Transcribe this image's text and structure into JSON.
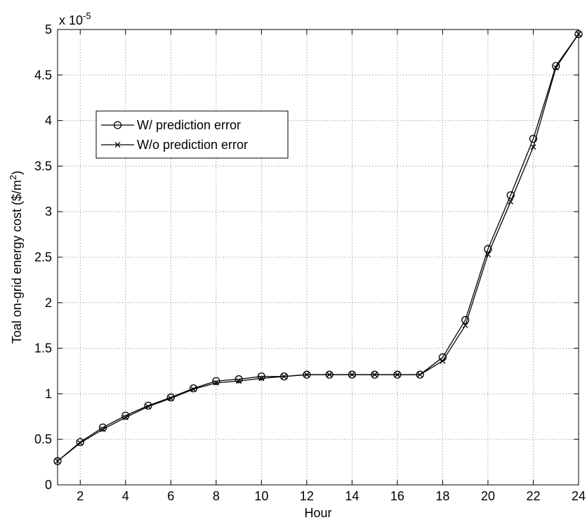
{
  "chart_data": {
    "type": "line",
    "title": "",
    "xlabel": "Hour",
    "ylabel": "Toal on-grid energy cost ($/m",
    "ylabel_superscript": "2",
    "ylabel_suffix": ")",
    "y_multiplier_label": "x 10",
    "y_multiplier_exponent": "-5",
    "xlim": [
      1,
      24
    ],
    "ylim": [
      0,
      5
    ],
    "xticks": [
      2,
      4,
      6,
      8,
      10,
      12,
      14,
      16,
      18,
      20,
      22,
      24
    ],
    "yticks": [
      0,
      0.5,
      1,
      1.5,
      2,
      2.5,
      3,
      3.5,
      4,
      4.5,
      5
    ],
    "ytick_labels": [
      "0",
      "0.5",
      "1",
      "1.5",
      "2",
      "2.5",
      "3",
      "3.5",
      "4",
      "4.5",
      "5"
    ],
    "grid": true,
    "legend_position": "upper-left",
    "x": [
      1,
      2,
      3,
      4,
      5,
      6,
      7,
      8,
      9,
      10,
      11,
      12,
      13,
      14,
      15,
      16,
      17,
      18,
      19,
      20,
      21,
      22,
      23,
      24
    ],
    "series": [
      {
        "name": "W/ prediction error",
        "marker": "circle",
        "color": "#000000",
        "values": [
          0.26,
          0.47,
          0.63,
          0.76,
          0.87,
          0.96,
          1.06,
          1.14,
          1.16,
          1.19,
          1.19,
          1.21,
          1.21,
          1.21,
          1.21,
          1.21,
          1.21,
          1.4,
          1.81,
          2.59,
          3.18,
          3.8,
          4.6,
          4.95
        ]
      },
      {
        "name": "W/o prediction error",
        "marker": "x",
        "color": "#000000",
        "values": [
          0.26,
          0.46,
          0.61,
          0.74,
          0.86,
          0.95,
          1.05,
          1.12,
          1.14,
          1.17,
          1.19,
          1.21,
          1.21,
          1.21,
          1.21,
          1.21,
          1.21,
          1.36,
          1.75,
          2.53,
          3.11,
          3.71,
          4.58,
          4.95
        ]
      }
    ]
  }
}
